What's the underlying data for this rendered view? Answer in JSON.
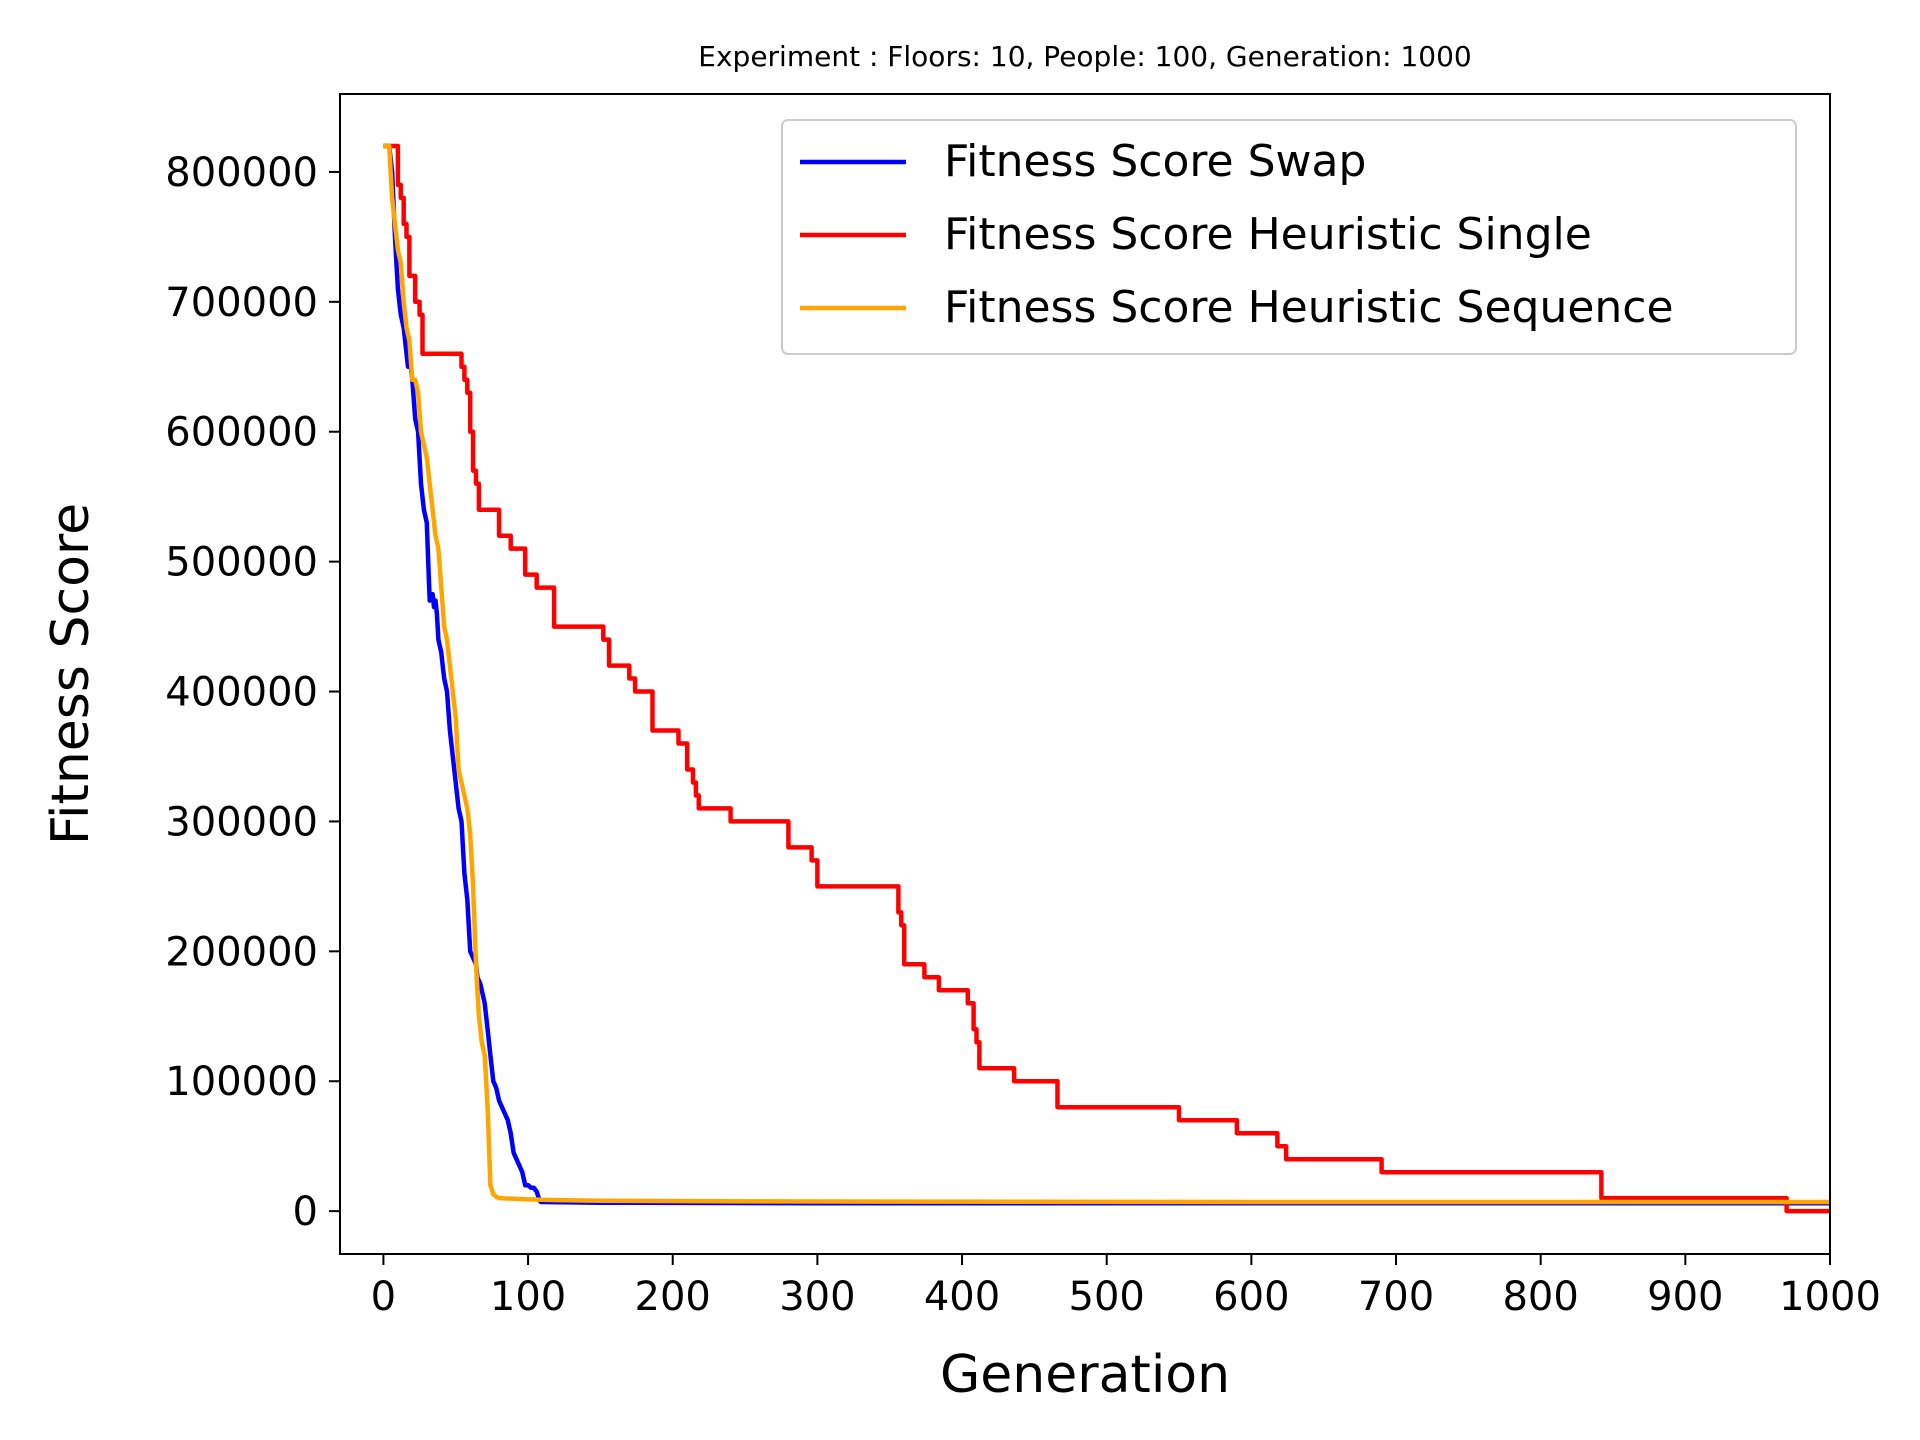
{
  "chart_data": {
    "type": "line",
    "title": "Experiment : Floors: 10, People: 100, Generation: 1000",
    "xlabel": "Generation",
    "ylabel": "Fitness Score",
    "xlim": [
      -30,
      1000
    ],
    "ylim": [
      -33000,
      860000
    ],
    "xticks": [
      0,
      100,
      200,
      300,
      400,
      500,
      600,
      700,
      800,
      900,
      1000
    ],
    "yticks": [
      0,
      100000,
      200000,
      300000,
      400000,
      500000,
      600000,
      700000,
      800000
    ],
    "legend_position": "upper-right",
    "grid": false,
    "series": [
      {
        "name": "Fitness Score Swap",
        "color": "#0000ff",
        "step": false,
        "x": [
          0,
          4,
          6,
          8,
          9,
          10,
          11,
          12,
          14,
          15,
          17,
          18,
          20,
          22,
          24,
          26,
          28,
          30,
          31,
          32,
          34,
          35,
          36,
          37,
          38,
          40,
          41,
          42,
          44,
          46,
          48,
          50,
          52,
          54,
          56,
          58,
          60,
          62,
          64,
          65,
          67,
          70,
          72,
          74,
          76,
          78,
          80,
          82,
          84,
          86,
          88,
          90,
          92,
          94,
          96,
          98,
          100,
          102,
          104,
          106,
          108,
          109,
          150,
          300,
          500,
          700,
          1000
        ],
        "y": [
          820000,
          820000,
          800000,
          750000,
          730000,
          710000,
          700000,
          690000,
          680000,
          670000,
          650000,
          660000,
          640000,
          610000,
          600000,
          560000,
          540000,
          530000,
          500000,
          470000,
          475000,
          465000,
          470000,
          460000,
          440000,
          430000,
          420000,
          410000,
          400000,
          370000,
          350000,
          330000,
          310000,
          300000,
          260000,
          240000,
          200000,
          195000,
          190000,
          180000,
          175000,
          160000,
          140000,
          120000,
          100000,
          95000,
          85000,
          80000,
          75000,
          70000,
          60000,
          45000,
          40000,
          35000,
          30000,
          20000,
          20000,
          18000,
          18000,
          15000,
          8000,
          7000,
          6500,
          6000,
          6000,
          6000,
          6000
        ]
      },
      {
        "name": "Fitness Score Heuristic Single",
        "color": "#ff0000",
        "step": true,
        "x": [
          0,
          8,
          10,
          12,
          14,
          16,
          18,
          22,
          25,
          27,
          50,
          54,
          56,
          58,
          60,
          62,
          64,
          66,
          80,
          84,
          88,
          98,
          102,
          106,
          110,
          118,
          122,
          150,
          152,
          156,
          164,
          170,
          174,
          186,
          196,
          204,
          210,
          214,
          216,
          218,
          220,
          240,
          262,
          280,
          296,
          300,
          320,
          354,
          356,
          358,
          360,
          364,
          374,
          384,
          390,
          404,
          408,
          410,
          412,
          418,
          436,
          452,
          466,
          486,
          520,
          550,
          572,
          590,
          606,
          618,
          624,
          648,
          660,
          690,
          700,
          840,
          842,
          966,
          970,
          1000
        ],
        "y": [
          820000,
          820000,
          790000,
          780000,
          760000,
          750000,
          720000,
          700000,
          690000,
          660000,
          660000,
          650000,
          640000,
          630000,
          600000,
          570000,
          560000,
          540000,
          520000,
          520000,
          510000,
          490000,
          490000,
          480000,
          480000,
          450000,
          450000,
          450000,
          440000,
          420000,
          420000,
          410000,
          400000,
          370000,
          370000,
          360000,
          340000,
          330000,
          320000,
          310000,
          310000,
          300000,
          300000,
          280000,
          270000,
          250000,
          250000,
          250000,
          230000,
          220000,
          190000,
          190000,
          180000,
          170000,
          170000,
          160000,
          140000,
          130000,
          110000,
          110000,
          100000,
          100000,
          80000,
          80000,
          80000,
          70000,
          70000,
          60000,
          60000,
          50000,
          40000,
          40000,
          40000,
          30000,
          30000,
          30000,
          10000,
          10000,
          0,
          0
        ]
      },
      {
        "name": "Fitness Score Heuristic Sequence",
        "color": "#ffa500",
        "step": false,
        "x": [
          0,
          4,
          6,
          8,
          10,
          12,
          14,
          16,
          18,
          20,
          22,
          24,
          26,
          28,
          30,
          32,
          34,
          36,
          38,
          40,
          42,
          44,
          46,
          48,
          50,
          52,
          54,
          56,
          58,
          60,
          62,
          64,
          66,
          68,
          70,
          72,
          74,
          76,
          78,
          80,
          90,
          100,
          120,
          150,
          250,
          600,
          1000
        ],
        "y": [
          820000,
          820000,
          780000,
          760000,
          740000,
          730000,
          700000,
          680000,
          670000,
          640000,
          640000,
          630000,
          600000,
          590000,
          580000,
          560000,
          540000,
          520000,
          510000,
          480000,
          450000,
          440000,
          420000,
          400000,
          380000,
          340000,
          330000,
          320000,
          310000,
          290000,
          250000,
          190000,
          150000,
          130000,
          120000,
          80000,
          20000,
          13000,
          11000,
          10000,
          9500,
          9000,
          8500,
          8000,
          7500,
          7000,
          7000
        ]
      }
    ]
  }
}
